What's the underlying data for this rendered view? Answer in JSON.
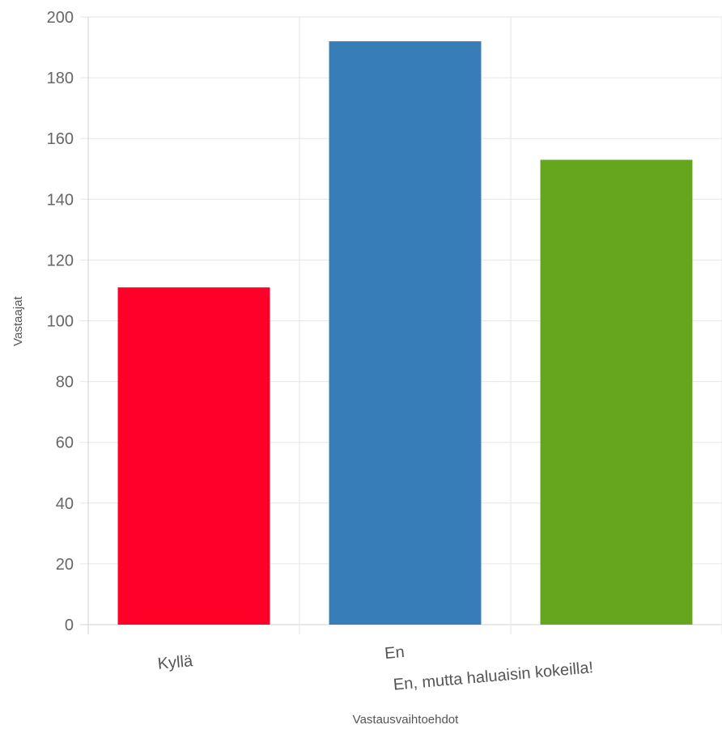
{
  "chart_data": {
    "type": "bar",
    "categories": [
      "Kyllä",
      "En",
      "En, mutta haluaisin kokeilla!"
    ],
    "values": [
      111,
      192,
      153
    ],
    "colors": [
      "#ff0029",
      "#377eb8",
      "#66a61e"
    ],
    "xlabel": "Vastausvaihtoehdot",
    "ylabel": "Vastaajat",
    "ylim": [
      0,
      200
    ],
    "yticks": [
      "0",
      "20",
      "40",
      "60",
      "80",
      "100",
      "120",
      "140",
      "160",
      "180",
      "200"
    ],
    "grid": true,
    "legend": "none"
  }
}
